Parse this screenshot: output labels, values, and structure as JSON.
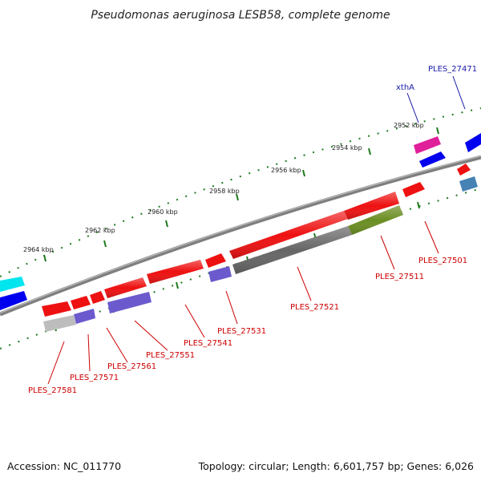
{
  "title": "Pseudomonas aeruginosa LESB58, complete genome",
  "accession_text": "Accession: NC_011770",
  "summary_text": "Topology: circular; Length: 6,601,757 bp; Genes: 6,026",
  "colors": {
    "backbone": "#7f7f7f",
    "tick": "#1e7a1e",
    "label_red": "#cc0000",
    "label_blue": "#1a1aa8",
    "gene_red": "#ee1111",
    "gene_gray": "#666666",
    "gene_olive": "#6b8e23",
    "gene_purple": "#6a5acd",
    "gene_blue": "#0000ee",
    "gene_cyan": "#00e5ee",
    "gene_magenta": "#e0209a",
    "gene_steel": "#4682b4",
    "gene_silver": "#bdbdbd"
  },
  "scale_labels": [
    "2952 kbp",
    "2954 kbp",
    "2956 kbp",
    "2958 kbp",
    "2960 kbp",
    "2962 kbp",
    "2964 kbp"
  ],
  "gene_labels": [
    {
      "text": "PLES_27471",
      "color": "blue"
    },
    {
      "text": "xthA",
      "color": "blue"
    },
    {
      "text": "PLES_27501",
      "color": "red"
    },
    {
      "text": "PLES_27511",
      "color": "red"
    },
    {
      "text": "PLES_27521",
      "color": "red"
    },
    {
      "text": "PLES_27531",
      "color": "red"
    },
    {
      "text": "PLES_27541",
      "color": "red"
    },
    {
      "text": "PLES_27551",
      "color": "red"
    },
    {
      "text": "PLES_27561",
      "color": "red"
    },
    {
      "text": "PLES_27571",
      "color": "red"
    },
    {
      "text": "PLES_27581",
      "color": "red"
    }
  ]
}
